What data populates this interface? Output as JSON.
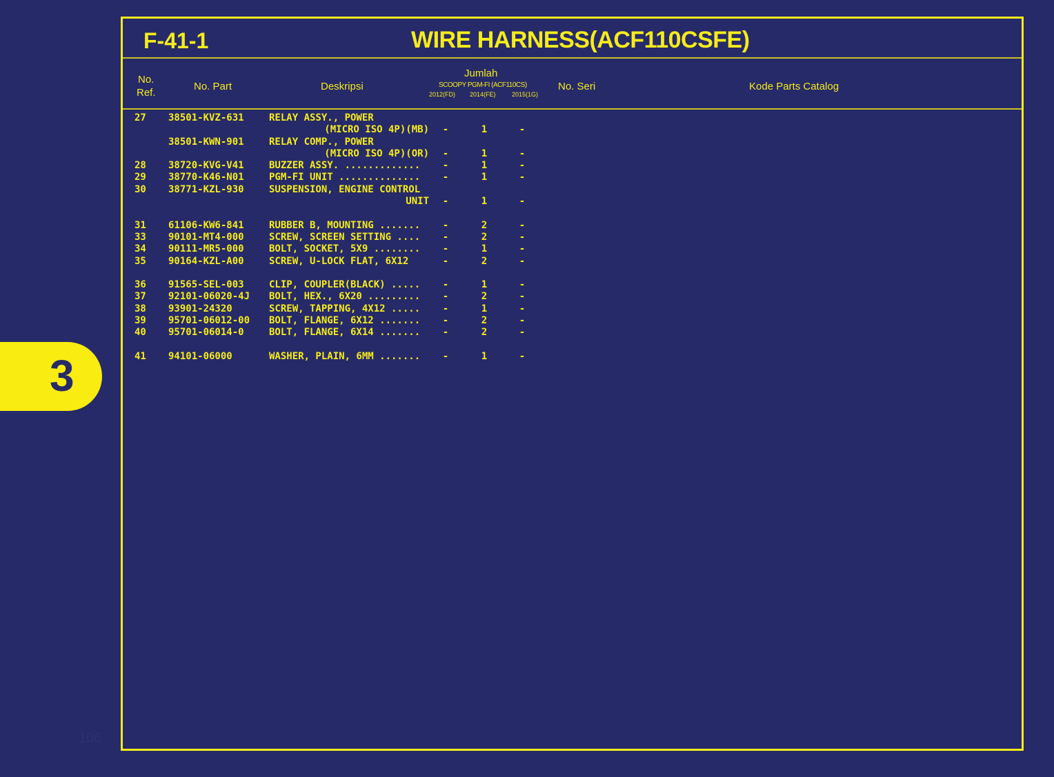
{
  "figure_no": "F-41-1",
  "title": "WIRE HARNESS(ACF110CSFE)",
  "section_tab": "3",
  "page_number": "106",
  "header": {
    "ref_line1": "No.",
    "ref_line2": "Ref.",
    "part": "No. Part",
    "desc": "Deskripsi",
    "qty": "Jumlah",
    "model": "SCOOPY PGM-FI (ACF110CS)",
    "years": [
      "2012(FD)",
      "2014(FE)",
      "2015(1G)"
    ],
    "serial": "No. Seri",
    "catalog": "Kode Parts Catalog"
  },
  "lines": [
    {
      "ref": "27",
      "part": "38501-KVZ-631",
      "desc": "RELAY ASSY., POWER",
      "right": false,
      "qty": []
    },
    {
      "ref": "",
      "part": "",
      "desc": "(MICRO ISO 4P)(MB)",
      "right": true,
      "qty": [
        "-",
        "1",
        "-"
      ]
    },
    {
      "ref": "",
      "part": "38501-KWN-901",
      "desc": "RELAY COMP., POWER",
      "right": false,
      "qty": []
    },
    {
      "ref": "",
      "part": "",
      "desc": "(MICRO ISO 4P)(OR)",
      "right": true,
      "qty": [
        "-",
        "1",
        "-"
      ]
    },
    {
      "ref": "28",
      "part": "38720-KVG-V41",
      "desc": "BUZZER ASSY. .............",
      "right": false,
      "qty": [
        "-",
        "1",
        "-"
      ]
    },
    {
      "ref": "29",
      "part": "38770-K46-N01",
      "desc": "PGM-FI UNIT ..............",
      "right": false,
      "qty": [
        "-",
        "1",
        "-"
      ]
    },
    {
      "ref": "30",
      "part": "38771-KZL-930",
      "desc": "SUSPENSION, ENGINE CONTROL",
      "right": false,
      "qty": []
    },
    {
      "ref": "",
      "part": "",
      "desc": "UNIT",
      "right": true,
      "qty": [
        "-",
        "1",
        "-"
      ]
    },
    {
      "ref": "",
      "part": "",
      "desc": "",
      "right": false,
      "qty": []
    },
    {
      "ref": "31",
      "part": "61106-KW6-841",
      "desc": "RUBBER B, MOUNTING .......",
      "right": false,
      "qty": [
        "-",
        "2",
        "-"
      ]
    },
    {
      "ref": "33",
      "part": "90101-MT4-000",
      "desc": "SCREW, SCREEN SETTING ....",
      "right": false,
      "qty": [
        "-",
        "2",
        "-"
      ]
    },
    {
      "ref": "34",
      "part": "90111-MR5-000",
      "desc": "BOLT, SOCKET, 5X9 ........",
      "right": false,
      "qty": [
        "-",
        "1",
        "-"
      ]
    },
    {
      "ref": "35",
      "part": "90164-KZL-A00",
      "desc": "SCREW, U-LOCK FLAT, 6X12",
      "right": false,
      "qty": [
        "-",
        "2",
        "-"
      ]
    },
    {
      "ref": "",
      "part": "",
      "desc": "",
      "right": false,
      "qty": []
    },
    {
      "ref": "36",
      "part": "91565-SEL-003",
      "desc": "CLIP, COUPLER(BLACK) .....",
      "right": false,
      "qty": [
        "-",
        "1",
        "-"
      ]
    },
    {
      "ref": "37",
      "part": "92101-06020-4J",
      "desc": "BOLT, HEX., 6X20 .........",
      "right": false,
      "qty": [
        "-",
        "2",
        "-"
      ]
    },
    {
      "ref": "38",
      "part": "93901-24320",
      "desc": "SCREW, TAPPING, 4X12 .....",
      "right": false,
      "qty": [
        "-",
        "1",
        "-"
      ]
    },
    {
      "ref": "39",
      "part": "95701-06012-00",
      "desc": "BOLT, FLANGE, 6X12 .......",
      "right": false,
      "qty": [
        "-",
        "2",
        "-"
      ]
    },
    {
      "ref": "40",
      "part": "95701-06014-0",
      "desc": "BOLT, FLANGE, 6X14 .......",
      "right": false,
      "qty": [
        "-",
        "2",
        "-"
      ]
    },
    {
      "ref": "",
      "part": "",
      "desc": "",
      "right": false,
      "qty": []
    },
    {
      "ref": "41",
      "part": "94101-06000",
      "desc": "WASHER, PLAIN, 6MM .......",
      "right": false,
      "qty": [
        "-",
        "1",
        "-"
      ]
    }
  ]
}
